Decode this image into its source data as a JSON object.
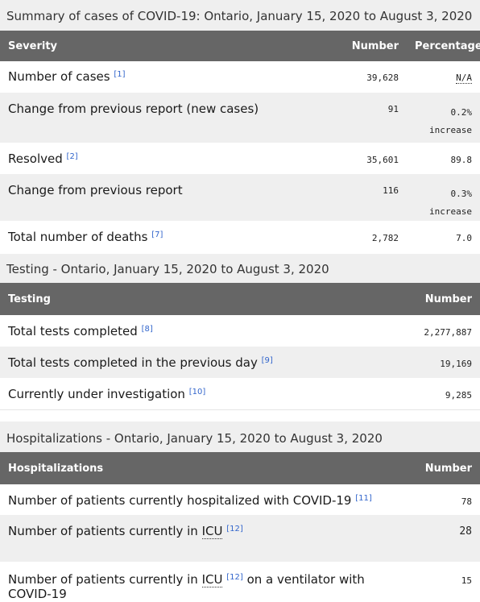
{
  "cases": {
    "caption": "Summary of cases of COVID-19: Ontario, January 15, 2020 to August 3, 2020",
    "headers": {
      "severity": "Severity",
      "number": "Number",
      "percentage": "Percentage"
    },
    "rows": [
      {
        "label": "Number of cases",
        "ref": "[1]",
        "number": "39,628",
        "pct": "N/A"
      },
      {
        "label": "Change from previous report (new cases)",
        "number": "91",
        "pct": "0.2%",
        "pct2": "increase"
      },
      {
        "label": "Resolved",
        "ref": "[2]",
        "number": "35,601",
        "pct": "89.8"
      },
      {
        "label": "Change from previous report",
        "number": "116",
        "pct": "0.3%",
        "pct2": "increase"
      },
      {
        "label": "Total number of deaths",
        "ref": "[7]",
        "number": "2,782",
        "pct": "7.0"
      }
    ]
  },
  "testing": {
    "caption_bold": "Testing",
    "caption_rest": " - Ontario, January 15, 2020 to August 3, 2020",
    "headers": {
      "testing": "Testing",
      "number": "Number"
    },
    "rows": [
      {
        "label": "Total tests completed",
        "ref": "[8]",
        "number": "2,277,887"
      },
      {
        "label": "Total tests completed in the previous day",
        "ref": "[9]",
        "number": "19,169"
      },
      {
        "label": "Currently under investigation",
        "ref": "[10]",
        "number": "9,285"
      }
    ]
  },
  "hospital": {
    "caption_bold": "Hospitalizations",
    "caption_rest": " - Ontario, January 15, 2020 to August 3, 2020",
    "headers": {
      "hosp": "Hospitalizations",
      "number": "Number"
    },
    "rows": [
      {
        "label": "Number of patients currently hospitalized with COVID-19",
        "ref": "[11]",
        "number": "78"
      },
      {
        "label_a": "Number of patients currently in ",
        "abbr": "ICU",
        "ref": "[12]",
        "number": "28"
      },
      {
        "label_a": "Number of patients currently in ",
        "abbr": "ICU",
        "ref": "[12]",
        "label_b": " on a ventilator with COVID-19",
        "number": "15"
      }
    ]
  }
}
